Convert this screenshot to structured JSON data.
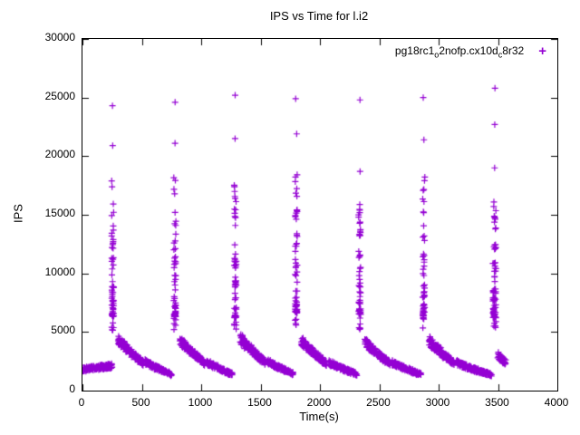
{
  "chart_data": {
    "type": "scatter",
    "title": "IPS vs Time for l.i2",
    "xlabel": "Time(s)",
    "ylabel": "IPS",
    "xlim": [
      0,
      4000
    ],
    "ylim": [
      0,
      30000
    ],
    "xticks": [
      0,
      500,
      1000,
      1500,
      2000,
      2500,
      3000,
      3500,
      4000
    ],
    "yticks": [
      0,
      5000,
      10000,
      15000,
      20000,
      25000,
      30000
    ],
    "grid": false,
    "legend_position": "top-right-inside",
    "series": [
      {
        "name": "pg18rc1_o2nofp.cx10d_c8r32",
        "label_parts": [
          {
            "text": "pg18rc1"
          },
          {
            "sub": "o"
          },
          {
            "text": "2nofp.cx10d"
          },
          {
            "sub": "c"
          },
          {
            "text": "8r32"
          }
        ],
        "color": "#9400d3",
        "marker": "plus",
        "spikes": [
          {
            "x": 255,
            "col_min": 6300,
            "col_max": 18400,
            "upper": [
              20900,
              24300
            ]
          },
          {
            "x": 778,
            "col_min": 6300,
            "col_max": 18500,
            "upper": [
              21100,
              24600
            ]
          },
          {
            "x": 1287,
            "col_min": 6200,
            "col_max": 18100,
            "upper": [
              21500,
              25200
            ]
          },
          {
            "x": 1800,
            "col_min": 6700,
            "col_max": 18700,
            "upper": [
              21900,
              24900
            ],
            "lower": [
              5600
            ]
          },
          {
            "x": 2335,
            "col_min": 6500,
            "col_max": 16000,
            "upper": [
              18700,
              24800
            ]
          },
          {
            "x": 2875,
            "col_min": 6400,
            "col_max": 18600,
            "upper": [
              21400,
              25000
            ]
          },
          {
            "x": 3470,
            "col_min": 6200,
            "col_max": 16800,
            "upper": [
              19000,
              22700,
              25800
            ],
            "jitter": 26,
            "n": 70
          }
        ],
        "baseline_segments": [
          {
            "x0": 0,
            "x1": 250,
            "y0": 1780,
            "y1": 2080
          },
          {
            "x0": 300,
            "x1": 510,
            "y0": 4400,
            "y1": 2350
          },
          {
            "x0": 530,
            "x1": 750,
            "y0": 2450,
            "y1": 1400
          },
          {
            "x0": 820,
            "x1": 1030,
            "y0": 4400,
            "y1": 2350
          },
          {
            "x0": 1050,
            "x1": 1260,
            "y0": 2450,
            "y1": 1400
          },
          {
            "x0": 1330,
            "x1": 1540,
            "y0": 4500,
            "y1": 2400
          },
          {
            "x0": 1560,
            "x1": 1775,
            "y0": 2500,
            "y1": 1450
          },
          {
            "x0": 1845,
            "x1": 2055,
            "y0": 4300,
            "y1": 2300
          },
          {
            "x0": 2075,
            "x1": 2310,
            "y0": 2450,
            "y1": 1400
          },
          {
            "x0": 2380,
            "x1": 2590,
            "y0": 4200,
            "y1": 2300
          },
          {
            "x0": 2610,
            "x1": 2850,
            "y0": 2400,
            "y1": 1380
          },
          {
            "x0": 2920,
            "x1": 3130,
            "y0": 4300,
            "y1": 2350
          },
          {
            "x0": 3150,
            "x1": 3445,
            "y0": 2400,
            "y1": 1350
          },
          {
            "x0": 3500,
            "x1": 3565,
            "y0": 3000,
            "y1": 2400
          }
        ]
      }
    ]
  }
}
